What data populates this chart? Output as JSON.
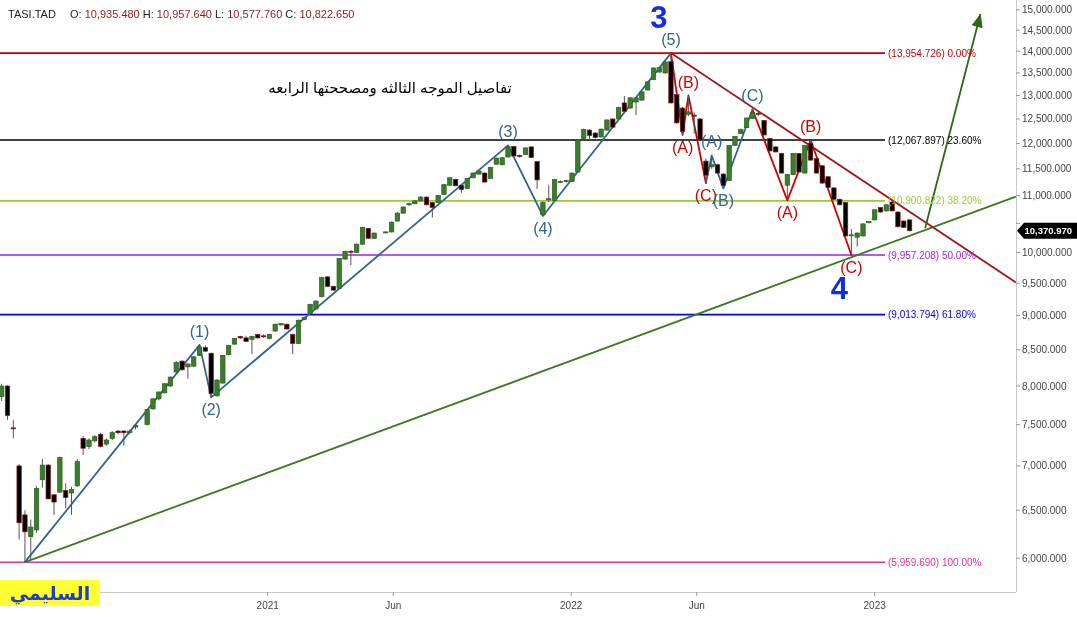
{
  "chart_data": {
    "type": "candlestick",
    "title": "TASI.TAD",
    "subtitle": "O: 10,935.480 H: 10,957.640 L: 10,577.760 C: 10,822.650",
    "log": true,
    "xlim": [
      "2020-02-14",
      "2023-06-20"
    ],
    "ylim": [
      5670,
      15250
    ],
    "xticks": [
      {
        "value": "2021-01-01",
        "label": "2021"
      },
      {
        "value": "2021-06-01",
        "label": "Jun"
      },
      {
        "value": "2022-01-01",
        "label": "2022"
      },
      {
        "value": "2022-06-01",
        "label": "Jun"
      },
      {
        "value": "2023-01-01",
        "label": "2023"
      }
    ],
    "yticks": [
      {
        "value": 6000,
        "label": "6,000.000"
      },
      {
        "value": 6500,
        "label": "6,500.000"
      },
      {
        "value": 7000,
        "label": "7,000.000"
      },
      {
        "value": 7500,
        "label": "7,500.000"
      },
      {
        "value": 8000,
        "label": "8,000.000"
      },
      {
        "value": 8500,
        "label": "8,500.000"
      },
      {
        "value": 9000,
        "label": "9,000.000"
      },
      {
        "value": 9500,
        "label": "9,500.000"
      },
      {
        "value": 10000,
        "label": "10,000.000"
      },
      {
        "value": 10500,
        "label": null
      },
      {
        "value": 11000,
        "label": "11,000.000"
      },
      {
        "value": 11500,
        "label": "11,500.000"
      },
      {
        "value": 12000,
        "label": "12,000.000"
      },
      {
        "value": 12500,
        "label": "12,500.000"
      },
      {
        "value": 13000,
        "label": "13,000.000"
      },
      {
        "value": 13500,
        "label": "13,500.000"
      },
      {
        "value": 14000,
        "label": "14,000.000"
      },
      {
        "value": 14500,
        "label": "14,500.000"
      },
      {
        "value": 15000,
        "label": "15,000.000"
      }
    ],
    "x": [
      "2020-02-16",
      "2020-02-23",
      "2020-03-01",
      "2020-03-08",
      "2020-03-15",
      "2020-03-22",
      "2020-03-29",
      "2020-04-05",
      "2020-04-12",
      "2020-04-19",
      "2020-04-26",
      "2020-05-03",
      "2020-05-10",
      "2020-05-17",
      "2020-05-24",
      "2020-05-31",
      "2020-06-07",
      "2020-06-14",
      "2020-06-21",
      "2020-06-28",
      "2020-07-05",
      "2020-07-12",
      "2020-07-19",
      "2020-07-26",
      "2020-08-09",
      "2020-08-16",
      "2020-08-23",
      "2020-08-30",
      "2020-09-06",
      "2020-09-13",
      "2020-09-20",
      "2020-09-27",
      "2020-10-04",
      "2020-10-11",
      "2020-10-18",
      "2020-10-25",
      "2020-11-01",
      "2020-11-08",
      "2020-11-15",
      "2020-11-22",
      "2020-11-29",
      "2020-12-06",
      "2020-12-13",
      "2020-12-20",
      "2020-12-27",
      "2021-01-03",
      "2021-01-10",
      "2021-01-17",
      "2021-01-24",
      "2021-01-31",
      "2021-02-07",
      "2021-02-14",
      "2021-02-21",
      "2021-02-28",
      "2021-03-07",
      "2021-03-14",
      "2021-03-21",
      "2021-03-28",
      "2021-04-04",
      "2021-04-11",
      "2021-04-18",
      "2021-04-25",
      "2021-05-02",
      "2021-05-09",
      "2021-05-23",
      "2021-05-30",
      "2021-06-06",
      "2021-06-13",
      "2021-06-20",
      "2021-06-27",
      "2021-07-04",
      "2021-07-11",
      "2021-07-18",
      "2021-07-25",
      "2021-08-01",
      "2021-08-08",
      "2021-08-15",
      "2021-08-22",
      "2021-08-29",
      "2021-09-05",
      "2021-09-12",
      "2021-09-19",
      "2021-09-26",
      "2021-10-03",
      "2021-10-10",
      "2021-10-17",
      "2021-10-24",
      "2021-10-31",
      "2021-11-07",
      "2021-11-14",
      "2021-11-21",
      "2021-11-28",
      "2021-12-05",
      "2021-12-12",
      "2021-12-19",
      "2021-12-26",
      "2022-01-02",
      "2022-01-09",
      "2022-01-16",
      "2022-01-23",
      "2022-01-30",
      "2022-02-06",
      "2022-02-13",
      "2022-02-20",
      "2022-02-27",
      "2022-03-06",
      "2022-03-13",
      "2022-03-20",
      "2022-03-27",
      "2022-04-03",
      "2022-04-10",
      "2022-04-17",
      "2022-04-24",
      "2022-05-01",
      "2022-05-08",
      "2022-05-15",
      "2022-05-22",
      "2022-05-29",
      "2022-06-05",
      "2022-06-12",
      "2022-06-19",
      "2022-06-26",
      "2022-07-03",
      "2022-07-10",
      "2022-07-17",
      "2022-07-24",
      "2022-07-31",
      "2022-08-07",
      "2022-08-14",
      "2022-08-21",
      "2022-08-28",
      "2022-09-04",
      "2022-09-11",
      "2022-09-18",
      "2022-09-25",
      "2022-10-02",
      "2022-10-09",
      "2022-10-16",
      "2022-10-23",
      "2022-10-30",
      "2022-11-06",
      "2022-11-13",
      "2022-11-20",
      "2022-11-27",
      "2022-12-04",
      "2022-12-11",
      "2022-12-18",
      "2022-12-25",
      "2023-01-01",
      "2023-01-08",
      "2023-01-15",
      "2023-01-22",
      "2023-01-29",
      "2023-02-05",
      "2023-02-12"
    ],
    "ohlc": [
      [
        7860,
        8030,
        7800,
        8000
      ],
      [
        8000,
        8010,
        7560,
        7615
      ],
      [
        7460,
        7560,
        7330,
        7450
      ],
      [
        7000,
        7020,
        6190,
        6365
      ],
      [
        6450,
        6500,
        5959.69,
        6270
      ],
      [
        6220,
        6400,
        5980,
        6320
      ],
      [
        6290,
        6770,
        6260,
        6740
      ],
      [
        6840,
        7080,
        6750,
        7010
      ],
      [
        7010,
        7020,
        6620,
        6625
      ],
      [
        6670,
        6680,
        6450,
        6590
      ],
      [
        6700,
        7110,
        6690,
        7100
      ],
      [
        6720,
        6800,
        6520,
        6640
      ],
      [
        6690,
        6760,
        6450,
        6730
      ],
      [
        6770,
        7080,
        6760,
        7050
      ],
      [
        7330,
        7360,
        7130,
        7210
      ],
      [
        7230,
        7330,
        7200,
        7310
      ],
      [
        7300,
        7370,
        7280,
        7350
      ],
      [
        7380,
        7400,
        7220,
        7230
      ],
      [
        7260,
        7330,
        7240,
        7310
      ],
      [
        7330,
        7420,
        7310,
        7400
      ],
      [
        7420,
        7430,
        7380,
        7400
      ],
      [
        7420,
        7430,
        7240,
        7400
      ],
      [
        7400,
        7440,
        7380,
        7420
      ],
      [
        7470,
        7500,
        7440,
        7490
      ],
      [
        7500,
        7700,
        7490,
        7690
      ],
      [
        7700,
        7840,
        7690,
        7830
      ],
      [
        7830,
        7930,
        7810,
        7920
      ],
      [
        7910,
        8040,
        7900,
        8030
      ],
      [
        8000,
        8130,
        7990,
        8120
      ],
      [
        8190,
        8340,
        8180,
        8320
      ],
      [
        8340,
        8350,
        8210,
        8220
      ],
      [
        8260,
        8310,
        8100,
        8300
      ],
      [
        8270,
        8410,
        8260,
        8400
      ],
      [
        8420,
        8570,
        8410,
        8540
      ],
      [
        8530,
        8560,
        8470,
        8480
      ],
      [
        8450,
        8460,
        7850,
        7900
      ],
      [
        7870,
        8090,
        7860,
        8080
      ],
      [
        8040,
        8430,
        8030,
        8420
      ],
      [
        8430,
        8570,
        8420,
        8560
      ],
      [
        8580,
        8670,
        8570,
        8660
      ],
      [
        8690,
        8700,
        8650,
        8670
      ],
      [
        8670,
        8700,
        8610,
        8620
      ],
      [
        8650,
        8700,
        8440,
        8690
      ],
      [
        8720,
        8730,
        8660,
        8670
      ],
      [
        8700,
        8720,
        8670,
        8690
      ],
      [
        8660,
        8730,
        8650,
        8720
      ],
      [
        8770,
        8880,
        8760,
        8870
      ],
      [
        8860,
        8890,
        8850,
        8880
      ],
      [
        8870,
        8880,
        8790,
        8800
      ],
      [
        8720,
        8730,
        8440,
        8590
      ],
      [
        8590,
        8940,
        8580,
        8930
      ],
      [
        8940,
        8980,
        8930,
        8970
      ],
      [
        9030,
        9180,
        9020,
        9170
      ],
      [
        9100,
        9230,
        9090,
        9220
      ],
      [
        9290,
        9600,
        9280,
        9590
      ],
      [
        9600,
        9610,
        9440,
        9450
      ],
      [
        9450,
        9460,
        9380,
        9390
      ],
      [
        9420,
        9900,
        9410,
        9900
      ],
      [
        9890,
        10030,
        9880,
        10020
      ],
      [
        10020,
        10040,
        9790,
        10010
      ],
      [
        10000,
        10150,
        9990,
        10140
      ],
      [
        10140,
        10440,
        10130,
        10430
      ],
      [
        10410,
        10420,
        10230,
        10240
      ],
      [
        10240,
        10340,
        10230,
        10330
      ],
      [
        10340,
        10360,
        10330,
        10350
      ],
      [
        10350,
        10530,
        10340,
        10520
      ],
      [
        10540,
        10700,
        10530,
        10680
      ],
      [
        10680,
        10800,
        10670,
        10790
      ],
      [
        10830,
        10870,
        10810,
        10850
      ],
      [
        10850,
        10910,
        10840,
        10900
      ],
      [
        10900,
        10990,
        10890,
        10970
      ],
      [
        10970,
        10980,
        10820,
        10830
      ],
      [
        10870,
        10880,
        10600,
        10780
      ],
      [
        10870,
        11010,
        10860,
        11000
      ],
      [
        11020,
        11210,
        11010,
        11200
      ],
      [
        11190,
        11340,
        11180,
        11330
      ],
      [
        11300,
        11310,
        11170,
        11180
      ],
      [
        11190,
        11200,
        11050,
        11110
      ],
      [
        11130,
        11330,
        11120,
        11320
      ],
      [
        11330,
        11430,
        11320,
        11420
      ],
      [
        11400,
        11470,
        11390,
        11460
      ],
      [
        11420,
        11430,
        11240,
        11250
      ],
      [
        11320,
        11540,
        11310,
        11530
      ],
      [
        11590,
        11720,
        11580,
        11710
      ],
      [
        11580,
        11730,
        11570,
        11715
      ],
      [
        11730,
        11960,
        11720,
        11930
      ],
      [
        11940,
        11950,
        11740,
        11750
      ],
      [
        11760,
        11780,
        11720,
        11740
      ],
      [
        11780,
        11920,
        11770,
        11910
      ],
      [
        11930,
        11940,
        11710,
        11720
      ],
      [
        11640,
        11650,
        11120,
        11290
      ],
      [
        10650,
        10890,
        10630,
        10870
      ],
      [
        10920,
        11200,
        10880,
        10940
      ],
      [
        10910,
        11310,
        10900,
        11300
      ],
      [
        11250,
        11280,
        11230,
        11260
      ],
      [
        11260,
        11290,
        11240,
        11280
      ],
      [
        11260,
        11430,
        11250,
        11420
      ],
      [
        11440,
        12080,
        11430,
        12070
      ],
      [
        12100,
        12300,
        12090,
        12280
      ],
      [
        12270,
        12290,
        12060,
        12160
      ],
      [
        12210,
        12230,
        12100,
        12120
      ],
      [
        12130,
        12300,
        12120,
        12290
      ],
      [
        12270,
        12490,
        12260,
        12480
      ],
      [
        12500,
        12510,
        12320,
        12330
      ],
      [
        12500,
        12760,
        12490,
        12740
      ],
      [
        12840,
        12990,
        12650,
        12660
      ],
      [
        12730,
        12960,
        12720,
        12950
      ],
      [
        12860,
        12960,
        12580,
        12950
      ],
      [
        12900,
        13090,
        12890,
        13080
      ],
      [
        13120,
        13310,
        13110,
        13300
      ],
      [
        13350,
        13630,
        13340,
        13610
      ],
      [
        13520,
        13640,
        13500,
        13620
      ],
      [
        13500,
        13760,
        13480,
        13750
      ],
      [
        13760,
        13954.726,
        12830,
        12840
      ],
      [
        13020,
        13060,
        12400,
        12420
      ],
      [
        12730,
        12750,
        12170,
        12240
      ],
      [
        12600,
        13000,
        12560,
        12650
      ],
      [
        12580,
        12640,
        12200,
        12560
      ],
      [
        12500,
        12520,
        12060,
        12070
      ],
      [
        11650,
        11700,
        11230,
        11380
      ],
      [
        11540,
        11760,
        11500,
        11580
      ],
      [
        11580,
        11600,
        11400,
        11420
      ],
      [
        11400,
        11420,
        11130,
        11190
      ],
      [
        11280,
        11970,
        11270,
        11960
      ],
      [
        11960,
        12150,
        11950,
        12140
      ],
      [
        12200,
        12300,
        12190,
        12280
      ],
      [
        12320,
        12530,
        12310,
        12520
      ],
      [
        12510,
        12700,
        12500,
        12640
      ],
      [
        12620,
        12650,
        12560,
        12600
      ],
      [
        12470,
        12480,
        12160,
        12170
      ],
      [
        12100,
        12110,
        11840,
        11850
      ],
      [
        11930,
        11940,
        11820,
        11830
      ],
      [
        11800,
        11810,
        11410,
        11420
      ],
      [
        11190,
        11400,
        10910,
        11390
      ],
      [
        11390,
        11810,
        11380,
        11800
      ],
      [
        11800,
        11810,
        11430,
        11440
      ],
      [
        11420,
        11970,
        11410,
        11960
      ],
      [
        12000,
        12070,
        11660,
        11670
      ],
      [
        11700,
        11710,
        11410,
        11420
      ],
      [
        11560,
        11570,
        11220,
        11230
      ],
      [
        11350,
        11360,
        11140,
        11150
      ],
      [
        11140,
        11150,
        10920,
        10930
      ],
      [
        10930,
        10940,
        10820,
        10830
      ],
      [
        10870,
        10880,
        10270,
        10280
      ],
      [
        10290,
        10400,
        9957.208,
        10300
      ],
      [
        10260,
        10340,
        10100,
        10330
      ],
      [
        10280,
        10500,
        10270,
        10490
      ],
      [
        10510,
        10540,
        10500,
        10530
      ],
      [
        10560,
        10750,
        10550,
        10740
      ],
      [
        10780,
        10790,
        10690,
        10700
      ],
      [
        10720,
        10840,
        10710,
        10830
      ],
      [
        10880,
        10900,
        10710,
        10720
      ],
      [
        10700,
        10710,
        10430,
        10440
      ],
      [
        10540,
        10550,
        10420,
        10430
      ],
      [
        10560,
        10570,
        10360,
        10370.97
      ]
    ],
    "ref_lines": [
      {
        "axis": "y",
        "value": 13954.726,
        "label": "(13,954.726) 0.00%",
        "color": "#cc0000"
      },
      {
        "axis": "y",
        "value": 12067.897,
        "label": "(12,067.897) 23.60%",
        "color": "#000000"
      },
      {
        "axis": "y",
        "value": 10900.822,
        "label": "(10,900.822) 38.20%",
        "color": "#9acd32"
      },
      {
        "axis": "y",
        "value": 9957.208,
        "label": "(9,957.208) 50.00%",
        "color": "#a020f0"
      },
      {
        "axis": "y",
        "value": 9013.794,
        "label": "(9,013.794) 61.80%",
        "color": "#0000ff"
      },
      {
        "axis": "y",
        "value": 5959.69,
        "label": "(5,959.690) 100.00%",
        "color": "#e0309a"
      }
    ],
    "series": [
      {
        "type": "line",
        "color": "#3d7a1f",
        "x": [
          "2020-03-15",
          "2023-06-19"
        ],
        "values": [
          5959.69,
          10975
        ]
      },
      {
        "type": "line",
        "color": "#a31515",
        "x": [
          "2022-05-01",
          "2023-06-19"
        ],
        "values": [
          13954.726,
          9520
        ]
      },
      {
        "type": "line",
        "color": "#2b6a14",
        "x": [
          "2023-03-03",
          "2023-05-08"
        ],
        "values": [
          10430,
          14880
        ]
      },
      {
        "type": "line",
        "color": "#2f6690",
        "x": [
          "2020-03-15",
          "2020-10-11",
          "2020-10-25",
          "2021-10-17",
          "2021-11-28",
          "2022-05-01"
        ],
        "values": [
          5959.69,
          8570,
          7850,
          11960,
          10630,
          13954.726
        ]
      },
      {
        "type": "line",
        "color": "#d00000",
        "x": [
          "2022-05-01",
          "2022-05-15",
          "2022-05-22",
          "2022-06-12"
        ],
        "values": [
          13954.726,
          12170,
          13000,
          11230
        ]
      },
      {
        "type": "line",
        "color": "#2f6690",
        "x": [
          "2022-06-12",
          "2022-06-19",
          "2022-07-03",
          "2022-08-07"
        ],
        "values": [
          11230,
          11760,
          11130,
          12700
        ]
      },
      {
        "type": "line",
        "color": "#d00000",
        "x": [
          "2022-08-07",
          "2022-09-18",
          "2022-10-16",
          "2022-12-04"
        ],
        "values": [
          12700,
          10910,
          12070,
          9957.208
        ]
      }
    ],
    "annotations": [
      "تفاصيل الموجه الثالثه ومصححتها الرابعه",
      "السليمي",
      "10,370.970",
      {
        "text": "(1)",
        "x": "2020-10-11",
        "y": 8570
      },
      {
        "text": "(2)",
        "x": "2020-10-25",
        "y": 7850
      },
      {
        "text": "(3)",
        "x": "2021-10-17",
        "y": 11960
      },
      {
        "text": "(4)",
        "x": "2021-11-28",
        "y": 10630
      },
      {
        "text": "(5)",
        "x": "2022-05-01",
        "y": 13954.726
      },
      {
        "text": "3",
        "x": "2022-05-01",
        "y": 13954.726
      },
      {
        "text": "(A)",
        "x": "2022-05-15",
        "y": 12170
      },
      {
        "text": "(B)",
        "x": "2022-05-22",
        "y": 13000
      },
      {
        "text": "(C)",
        "x": "2022-06-12",
        "y": 11230
      },
      {
        "text": "(A)",
        "x": "2022-06-19",
        "y": 11760
      },
      {
        "text": "(B)",
        "x": "2022-07-03",
        "y": 11130
      },
      {
        "text": "(C)",
        "x": "2022-08-07",
        "y": 12700
      },
      {
        "text": "(A)",
        "x": "2022-09-18",
        "y": 10910
      },
      {
        "text": "(B)",
        "x": "2022-10-16",
        "y": 12070
      },
      {
        "text": "(C)",
        "x": "2022-12-04",
        "y": 9957.208
      },
      {
        "text": "4",
        "x": "2022-12-04",
        "y": 9957.208
      }
    ]
  }
}
